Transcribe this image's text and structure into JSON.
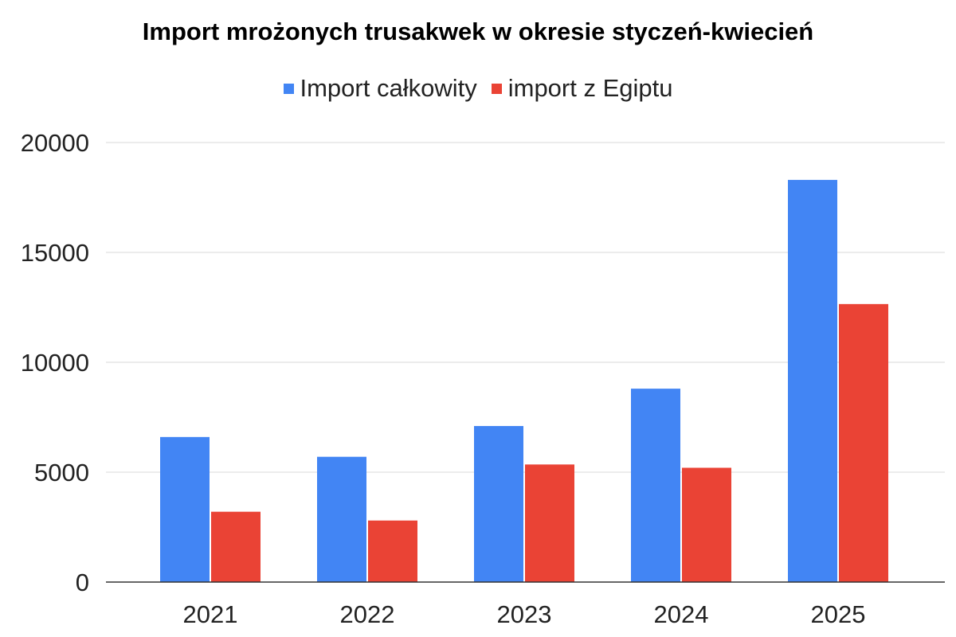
{
  "chart_data": {
    "type": "bar",
    "title": "Import mrożonych trusakwek w okresie styczeń-kwiecień",
    "xlabel": "",
    "ylabel": "",
    "categories": [
      "2021",
      "2022",
      "2023",
      "2024",
      "2025"
    ],
    "series": [
      {
        "name": "Import całkowity",
        "color": "#4285F4",
        "values": [
          6600,
          5700,
          7100,
          8800,
          18300
        ]
      },
      {
        "name": "import z Egiptu",
        "color": "#EA4335",
        "values": [
          3200,
          2800,
          5350,
          5200,
          12650
        ]
      }
    ],
    "ylim": [
      0,
      20000
    ],
    "yticks": [
      "0",
      "5000",
      "10000",
      "15000",
      "20000"
    ],
    "grid": true,
    "legend_position": "top-center"
  }
}
